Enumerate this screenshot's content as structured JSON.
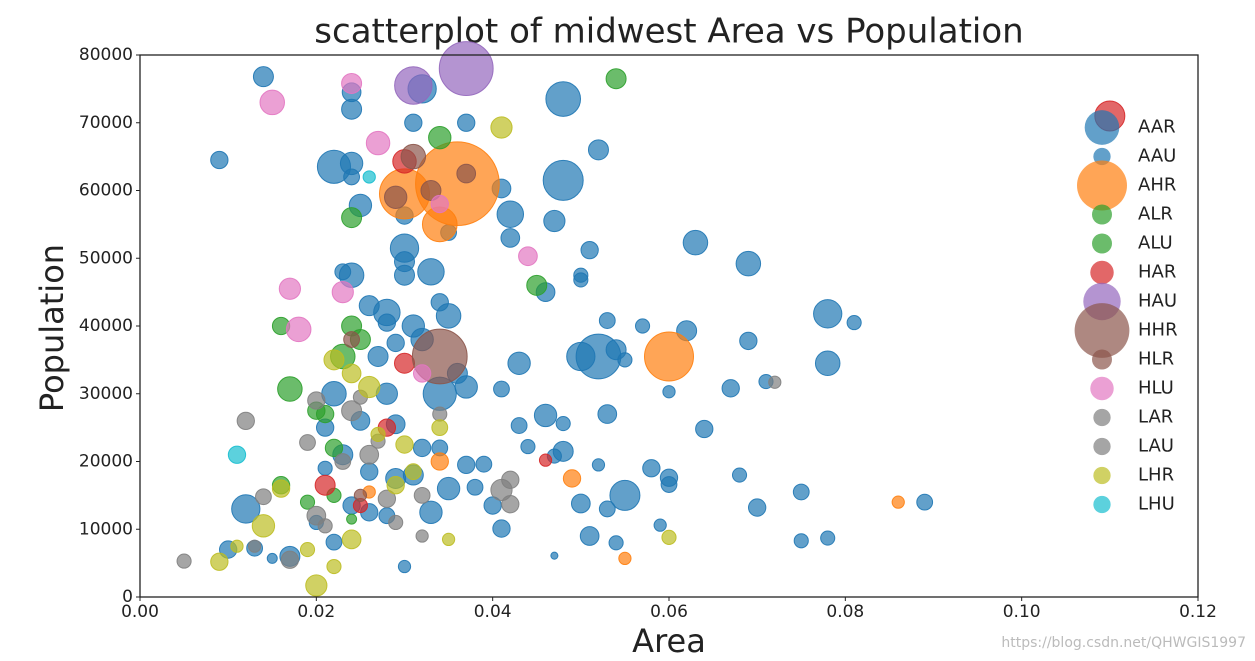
{
  "chart_data": {
    "type": "scatter",
    "title": "scatterplot of midwest Area vs Population",
    "x_label": "Area",
    "y_label": "Population",
    "watermark": "https://blog.csdn.net/QHWGIS1997",
    "xlim": [
      0,
      0.12
    ],
    "xticks": [
      {
        "value": 0,
        "label": "0.00"
      },
      {
        "value": 0.02,
        "label": "0.02"
      },
      {
        "value": 0.04,
        "label": "0.04"
      },
      {
        "value": 0.06,
        "label": "0.06"
      },
      {
        "value": 0.08,
        "label": "0.08"
      },
      {
        "value": 0.1,
        "label": "0.10"
      },
      {
        "value": 0.12,
        "label": "0.12"
      }
    ],
    "ylim": [
      0,
      80000
    ],
    "yticks": [
      0,
      10000,
      20000,
      30000,
      40000,
      50000,
      60000,
      70000,
      80000
    ],
    "grid": false,
    "legend": "center right",
    "alpha": 0.7,
    "series": [
      {
        "name": "AAR",
        "color": "#1f77b4",
        "x": [
          0.048,
          0.048,
          0.022,
          0.052,
          0.055,
          0.012,
          0.03,
          0.063,
          0.078,
          0.042,
          0.032,
          0.034,
          0.028,
          0.033,
          0.024,
          0.069,
          0.05,
          0.078,
          0.046,
          0.022
        ],
        "values": [
          73500,
          61500,
          63500,
          35500,
          15000,
          13000,
          51500,
          52300,
          41800,
          56500,
          75000,
          30000,
          42000,
          48000,
          47500,
          49200,
          35500,
          34500,
          26800,
          30000
        ],
        "sizes": [
          1200,
          1600,
          1100,
          2000,
          900,
          800,
          800,
          600,
          800,
          700,
          800,
          1100,
          700,
          700,
          600,
          600,
          800,
          600,
          500,
          600
        ]
      },
      {
        "name": "AAU",
        "color": "#1f77b4",
        "x": [
          0.009,
          0.014,
          0.024,
          0.024,
          0.031,
          0.037,
          0.052,
          0.024,
          0.024,
          0.025,
          0.03,
          0.035,
          0.041,
          0.047,
          0.042,
          0.051,
          0.05,
          0.05,
          0.046,
          0.03,
          0.03,
          0.023,
          0.034,
          0.035,
          0.031,
          0.028,
          0.026,
          0.053,
          0.057,
          0.062,
          0.069,
          0.081,
          0.054,
          0.055,
          0.06,
          0.067,
          0.071,
          0.043,
          0.041,
          0.043,
          0.048,
          0.053,
          0.064,
          0.044,
          0.048,
          0.047,
          0.052,
          0.058,
          0.06,
          0.06,
          0.068,
          0.075,
          0.089,
          0.07,
          0.05,
          0.053,
          0.059,
          0.04,
          0.041,
          0.051,
          0.054,
          0.075,
          0.078,
          0.047,
          0.03,
          0.01,
          0.013,
          0.015,
          0.017,
          0.02,
          0.022,
          0.024,
          0.026,
          0.028,
          0.021,
          0.023,
          0.026,
          0.029,
          0.031,
          0.033,
          0.035,
          0.037,
          0.038,
          0.039,
          0.021,
          0.025,
          0.028,
          0.029,
          0.032,
          0.034,
          0.027,
          0.029,
          0.032,
          0.036,
          0.037
        ],
        "values": [
          64500,
          76800,
          72000,
          74500,
          70000,
          70000,
          66000,
          64000,
          62000,
          57800,
          56300,
          53800,
          60300,
          55500,
          53000,
          51200,
          47500,
          46800,
          45000,
          49500,
          47500,
          48000,
          43500,
          41500,
          40000,
          40500,
          43000,
          40800,
          40000,
          39300,
          37800,
          40500,
          36500,
          35000,
          30300,
          30800,
          31800,
          34500,
          30700,
          25300,
          25600,
          27000,
          24800,
          22200,
          21500,
          20800,
          19500,
          19000,
          17600,
          16600,
          18000,
          15500,
          14000,
          13200,
          13800,
          13000,
          10600,
          13500,
          10100,
          9000,
          8000,
          8300,
          8700,
          6100,
          4500,
          7000,
          7200,
          5700,
          6000,
          11000,
          8100,
          13500,
          12500,
          12000,
          19000,
          21000,
          18500,
          17500,
          18000,
          12500,
          16000,
          19500,
          16200,
          19600,
          25000,
          26000,
          30000,
          25500,
          22000,
          22000,
          35500,
          37500,
          38000,
          33000,
          31000
        ],
        "sizes": [
          300,
          400,
          400,
          350,
          300,
          300,
          400,
          500,
          250,
          500,
          300,
          250,
          350,
          450,
          350,
          300,
          200,
          200,
          350,
          400,
          400,
          250,
          300,
          600,
          500,
          300,
          400,
          250,
          200,
          400,
          300,
          200,
          400,
          200,
          150,
          300,
          200,
          500,
          250,
          250,
          200,
          350,
          300,
          200,
          400,
          200,
          150,
          300,
          300,
          250,
          200,
          250,
          250,
          300,
          350,
          250,
          150,
          300,
          300,
          350,
          200,
          200,
          200,
          50,
          150,
          300,
          250,
          100,
          400,
          200,
          250,
          300,
          300,
          250,
          200,
          400,
          300,
          400,
          400,
          500,
          500,
          300,
          250,
          250,
          300,
          350,
          450,
          350,
          300,
          250,
          400,
          300,
          500,
          400,
          500
        ]
      },
      {
        "name": "AHR",
        "color": "#ff7f0e",
        "x": [
          0.03,
          0.036,
          0.034,
          0.06,
          0.049,
          0.055,
          0.034,
          0.086,
          0.026
        ],
        "values": [
          59500,
          61000,
          55000,
          35500,
          17500,
          5700,
          20000,
          14000,
          15500
        ],
        "sizes": [
          2500,
          7000,
          1200,
          2400,
          300,
          150,
          300,
          150,
          150
        ]
      },
      {
        "name": "ALR",
        "color": "#2ca02c",
        "x": [
          0.054,
          0.034,
          0.017,
          0.045,
          0.024,
          0.023,
          0.022,
          0.016,
          0.021
        ],
        "values": [
          76500,
          67800,
          30700,
          46000,
          40000,
          35500,
          22000,
          16500,
          27000
        ],
        "sizes": [
          400,
          500,
          600,
          400,
          400,
          600,
          300,
          300,
          300
        ]
      },
      {
        "name": "ALU",
        "color": "#2ca02c",
        "x": [
          0.024,
          0.016,
          0.025,
          0.02,
          0.019,
          0.024,
          0.022
        ],
        "values": [
          56000,
          40000,
          38000,
          27500,
          14000,
          11500,
          15000
        ],
        "sizes": [
          400,
          300,
          400,
          300,
          200,
          100,
          200
        ]
      },
      {
        "name": "HAR",
        "color": "#d62728",
        "x": [
          0.03,
          0.11,
          0.03,
          0.046,
          0.028,
          0.021,
          0.025
        ],
        "values": [
          64300,
          71000,
          34500,
          20200,
          25000,
          16500,
          13500
        ],
        "sizes": [
          550,
          900,
          400,
          150,
          300,
          400,
          200
        ]
      },
      {
        "name": "HAU",
        "color": "#9467bd",
        "x": [
          0.031,
          0.037
        ],
        "values": [
          75500,
          78000
        ],
        "sizes": [
          1400,
          2900
        ]
      },
      {
        "name": "HHR",
        "color": "#8c564b",
        "x": [
          0.034,
          0.031
        ],
        "values": [
          35500,
          65000
        ],
        "sizes": [
          3000,
          600
        ]
      },
      {
        "name": "HLR",
        "color": "#8c564b",
        "x": [
          0.033,
          0.037,
          0.029,
          0.024,
          0.025
        ],
        "values": [
          60000,
          62500,
          59000,
          38000,
          15000
        ],
        "sizes": [
          400,
          350,
          500,
          250,
          150
        ]
      },
      {
        "name": "HLU",
        "color": "#e377c2",
        "x": [
          0.027,
          0.024,
          0.015,
          0.017,
          0.018,
          0.023,
          0.044,
          0.034,
          0.032
        ],
        "values": [
          67000,
          75800,
          73000,
          45500,
          39500,
          45000,
          50300,
          58000,
          33000
        ],
        "sizes": [
          550,
          400,
          600,
          450,
          600,
          450,
          350,
          300,
          300
        ]
      },
      {
        "name": "LAR",
        "color": "#7f7f7f",
        "x": [
          0.012,
          0.005,
          0.014,
          0.017,
          0.019,
          0.02,
          0.024,
          0.026,
          0.028,
          0.041,
          0.042,
          0.032,
          0.072,
          0.042
        ],
        "values": [
          26000,
          5300,
          14800,
          5500,
          22800,
          12000,
          27500,
          21000,
          14500,
          15800,
          17300,
          9000,
          31700,
          13700
        ],
        "sizes": [
          300,
          200,
          250,
          300,
          250,
          350,
          400,
          350,
          300,
          450,
          300,
          150,
          150,
          300
        ]
      },
      {
        "name": "LAU",
        "color": "#7f7f7f",
        "x": [
          0.02,
          0.013,
          0.021,
          0.023,
          0.027,
          0.029,
          0.032,
          0.034,
          0.025
        ],
        "values": [
          29000,
          7500,
          10500,
          20000,
          23000,
          11000,
          15000,
          27000,
          29500
        ],
        "sizes": [
          300,
          150,
          200,
          250,
          200,
          200,
          250,
          200,
          200
        ]
      },
      {
        "name": "LHR",
        "color": "#bcbd22",
        "x": [
          0.009,
          0.014,
          0.02,
          0.022,
          0.024,
          0.024,
          0.026,
          0.03,
          0.031,
          0.034,
          0.035,
          0.041,
          0.06,
          0.022,
          0.019,
          0.011,
          0.027,
          0.016,
          0.029
        ],
        "values": [
          5200,
          10500,
          1700,
          4500,
          8500,
          33000,
          31000,
          22500,
          18500,
          25000,
          8500,
          69300,
          8800,
          35000,
          7000,
          7500,
          24000,
          16000,
          16500
        ],
        "sizes": [
          300,
          500,
          450,
          200,
          350,
          350,
          450,
          300,
          250,
          250,
          150,
          450,
          200,
          400,
          200,
          150,
          200,
          300,
          300
        ]
      },
      {
        "name": "LHU",
        "color": "#17becf",
        "x": [
          0.011,
          0.026
        ],
        "values": [
          21000,
          62000
        ],
        "sizes": [
          300,
          150
        ]
      }
    ]
  }
}
